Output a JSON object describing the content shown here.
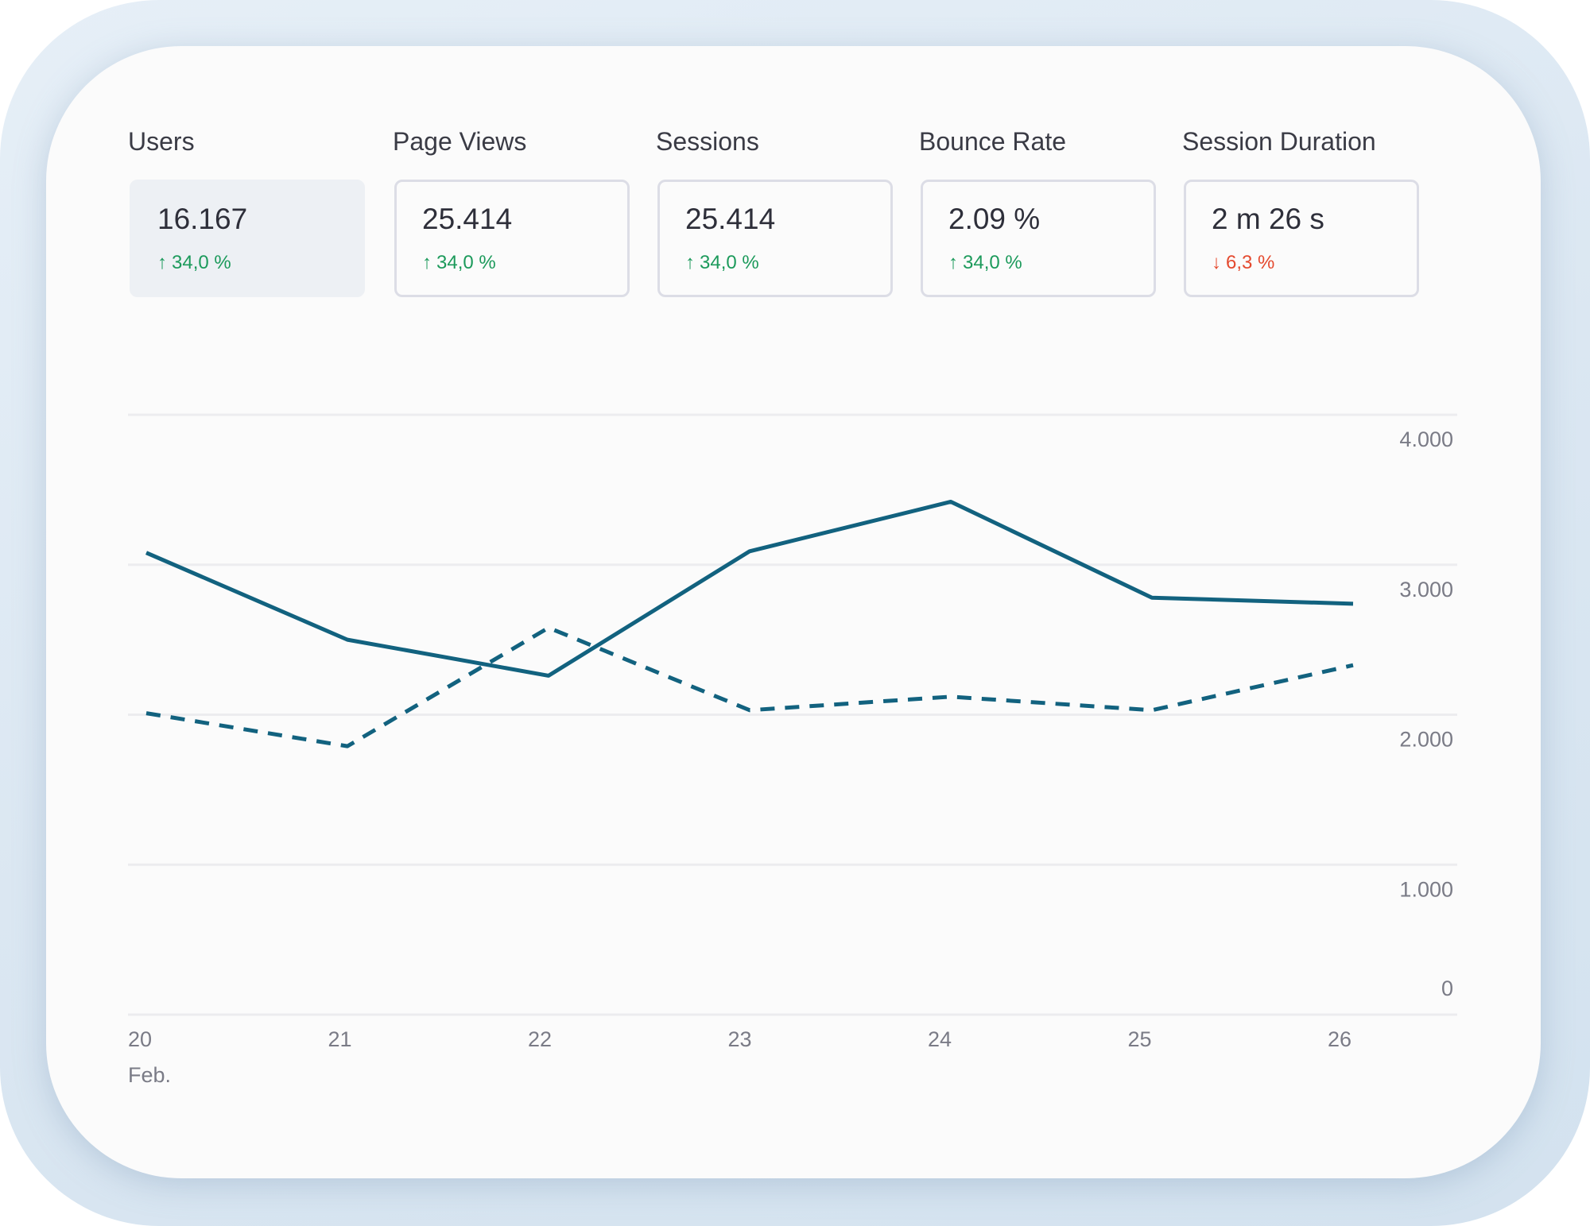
{
  "metrics": [
    {
      "label": "Users",
      "value": "16.167",
      "delta": "34,0 %",
      "direction": "up",
      "arrow": "↑",
      "selected": true
    },
    {
      "label": "Page Views",
      "value": "25.414",
      "delta": "34,0 %",
      "direction": "up",
      "arrow": "↑",
      "selected": false
    },
    {
      "label": "Sessions",
      "value": "25.414",
      "delta": "34,0 %",
      "direction": "up",
      "arrow": "↑",
      "selected": false
    },
    {
      "label": "Bounce Rate",
      "value": "2.09 %",
      "delta": "34,0 %",
      "direction": "up",
      "arrow": "↑",
      "selected": false
    },
    {
      "label": "Session Duration",
      "value": "2 m 26 s",
      "delta": "6,3 %",
      "direction": "down",
      "arrow": "↓",
      "selected": false
    }
  ],
  "colors": {
    "line": "#12627f",
    "grid": "#ececef",
    "axis_text": "#7a7b86",
    "up": "#1c9a5b",
    "down": "#e4492e"
  },
  "chart_data": {
    "type": "line",
    "x": [
      "20",
      "21",
      "22",
      "23",
      "24",
      "25",
      "26"
    ],
    "x_sublabel": "Feb.",
    "series": [
      {
        "style": "solid",
        "values": [
          3080,
          2500,
          2260,
          3090,
          3420,
          2780,
          2740
        ]
      },
      {
        "style": "dashed",
        "values": [
          2010,
          1790,
          2580,
          2030,
          2120,
          2030,
          2330
        ]
      }
    ],
    "yticks": [
      0,
      1000,
      2000,
      3000,
      4000
    ],
    "ytick_labels": [
      "0",
      "1.000",
      "2.000",
      "3.000",
      "4.000"
    ],
    "ylim": [
      0,
      4000
    ],
    "axis_position": "right",
    "grid": true
  }
}
